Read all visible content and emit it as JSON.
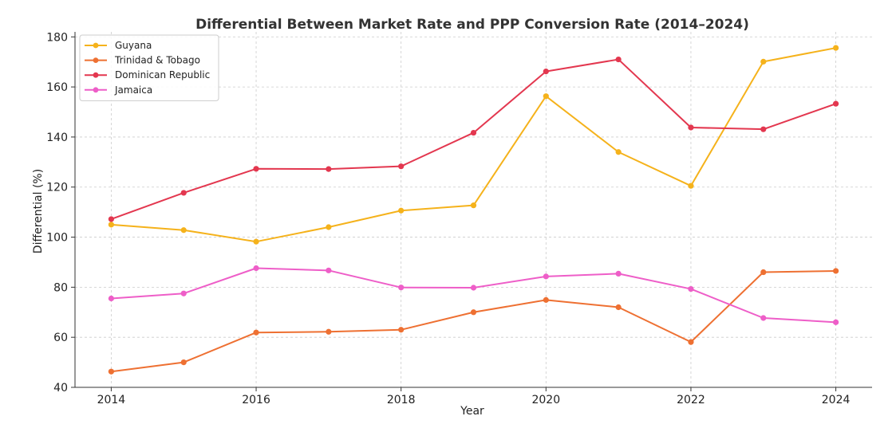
{
  "chart_data": {
    "type": "line",
    "title": "Differential Between Market Rate and PPP Conversion Rate (2014–2024)",
    "xlabel": "Year",
    "ylabel": "Differential (%)",
    "x": [
      2014,
      2015,
      2016,
      2017,
      2018,
      2019,
      2020,
      2021,
      2022,
      2023,
      2024
    ],
    "xticks": [
      2014,
      2016,
      2018,
      2020,
      2022,
      2024
    ],
    "xlim": [
      2013.5,
      2024.5
    ],
    "ylim": [
      40,
      182
    ],
    "yticks": [
      40,
      60,
      80,
      100,
      120,
      140,
      160,
      180
    ],
    "grid": true,
    "legend_position": "top-left",
    "series": [
      {
        "name": "Guyana",
        "color": "#f5b21b",
        "values": [
          105,
          102.8,
          98.2,
          104,
          110.6,
          112.7,
          156.3,
          134,
          120.5,
          170.1,
          175.6
        ]
      },
      {
        "name": "Trinidad & Tobago",
        "color": "#ee7032",
        "values": [
          46.3,
          50,
          61.9,
          62.2,
          63,
          70,
          74.9,
          72,
          58.1,
          86,
          86.5
        ]
      },
      {
        "name": "Dominican Republic",
        "color": "#e3374f",
        "values": [
          107.2,
          117.7,
          127.3,
          127.2,
          128.3,
          141.7,
          166.2,
          171,
          143.8,
          143.1,
          153.3
        ]
      },
      {
        "name": "Jamaica",
        "color": "#ee5ec8",
        "values": [
          75.5,
          77.5,
          87.6,
          86.7,
          79.9,
          79.8,
          84.3,
          85.4,
          79.3,
          67.7,
          66
        ]
      }
    ]
  }
}
